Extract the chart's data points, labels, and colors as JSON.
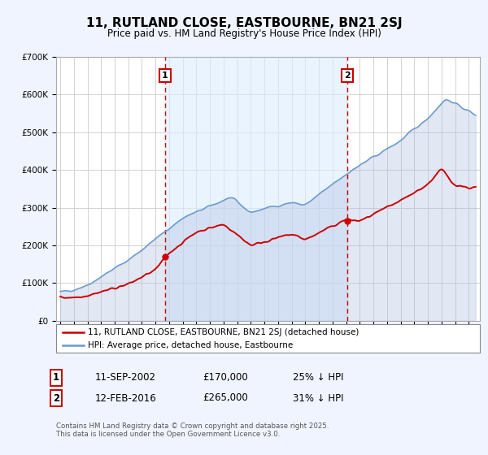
{
  "title": "11, RUTLAND CLOSE, EASTBOURNE, BN21 2SJ",
  "subtitle": "Price paid vs. HM Land Registry's House Price Index (HPI)",
  "background_color": "#f0f4ff",
  "plot_bg_color": "#ffffff",
  "grid_color": "#cccccc",
  "hpi_color": "#6699cc",
  "hpi_fill_color": "#aabbdd",
  "price_color": "#cc0000",
  "ylim": [
    0,
    700000
  ],
  "yticks": [
    0,
    100000,
    200000,
    300000,
    400000,
    500000,
    600000,
    700000
  ],
  "ytick_labels": [
    "£0",
    "£100K",
    "£200K",
    "£300K",
    "£400K",
    "£500K",
    "£600K",
    "£700K"
  ],
  "sale1_date": 2002.7,
  "sale1_price": 170000,
  "sale2_date": 2016.1,
  "sale2_price": 265000,
  "legend_label1": "11, RUTLAND CLOSE, EASTBOURNE, BN21 2SJ (detached house)",
  "legend_label2": "HPI: Average price, detached house, Eastbourne",
  "footnote": "Contains HM Land Registry data © Crown copyright and database right 2025.\nThis data is licensed under the Open Government Licence v3.0.",
  "table_row1": [
    "1",
    "11-SEP-2002",
    "£170,000",
    "25% ↓ HPI"
  ],
  "table_row2": [
    "2",
    "12-FEB-2016",
    "£265,000",
    "31% ↓ HPI"
  ]
}
